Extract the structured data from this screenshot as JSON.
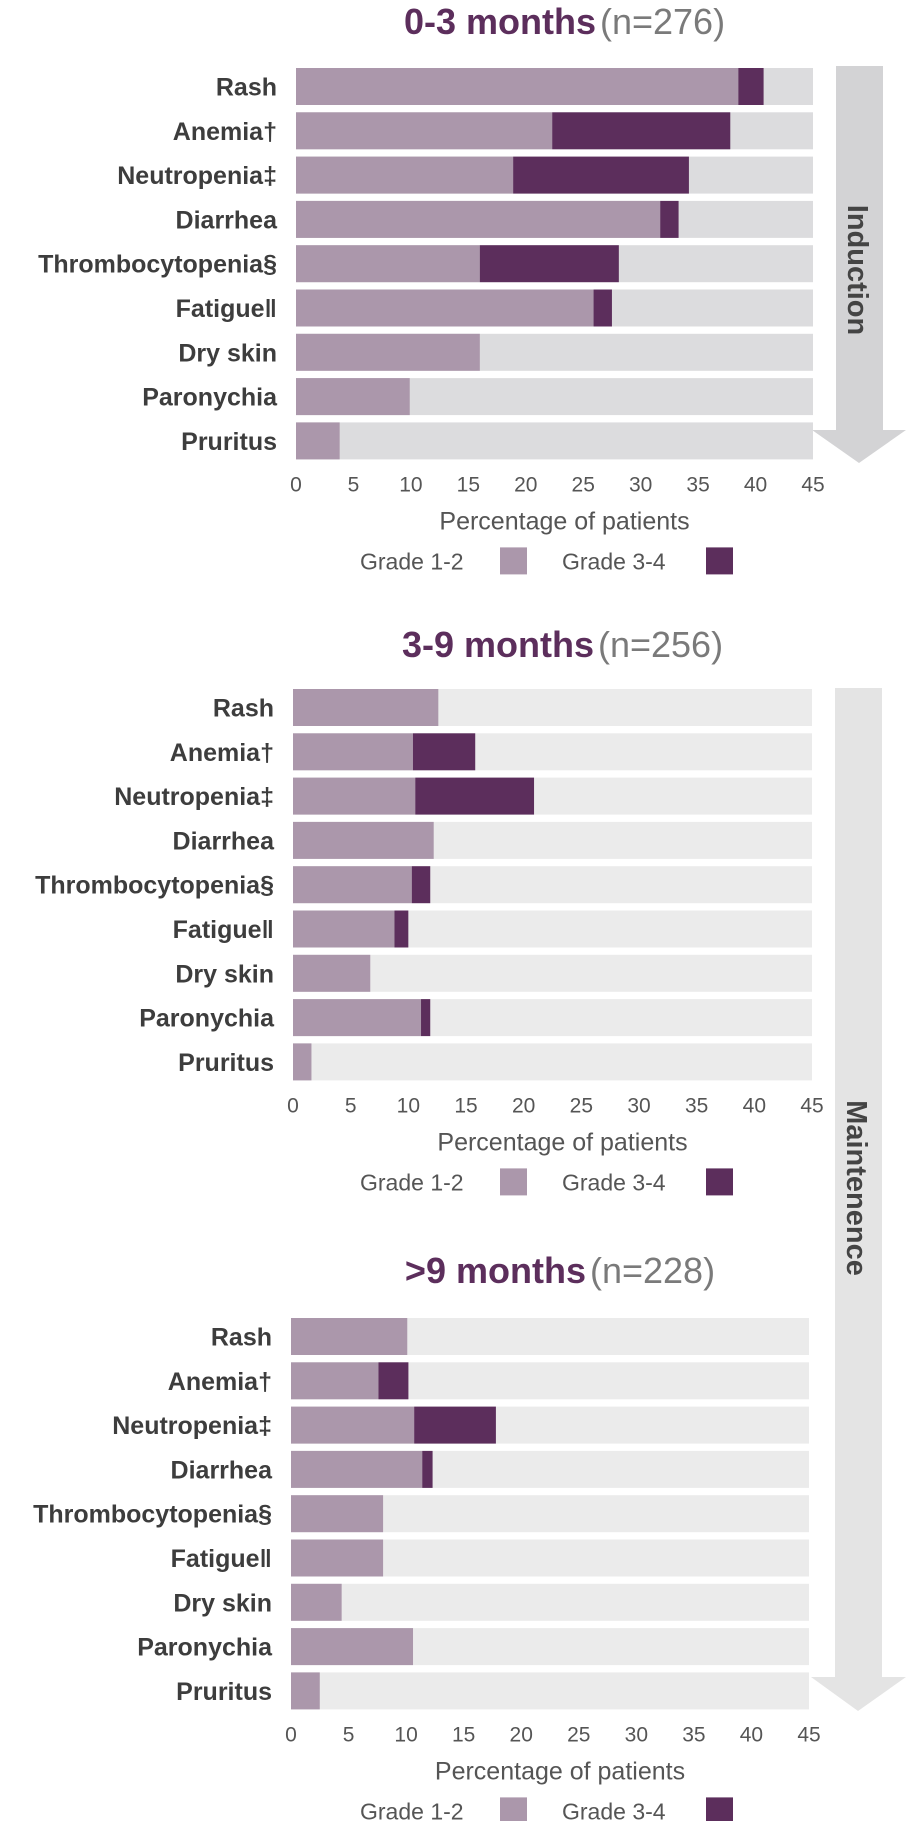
{
  "colors": {
    "grade_1_2": "#ab97ab",
    "grade_3_4": "#5c2e5c",
    "track": "#dcdcde",
    "track_light": "#ebebeb",
    "arrow_induction": "#d3d3d5",
    "arrow_maintenance": "#e4e4e4",
    "title_bold": "#5c2e5c",
    "title_n": "#7a7a7a"
  },
  "phases": {
    "induction": "Induction",
    "maintenance": "Maintenence"
  },
  "chart_data": [
    {
      "type": "bar",
      "orientation": "horizontal",
      "stacked": true,
      "title": "0-3 months",
      "subtitle": "(n=276)",
      "xlabel": "Percentage of patients",
      "xlim": [
        0,
        45
      ],
      "xticks": [
        0,
        5,
        10,
        15,
        20,
        25,
        30,
        35,
        40,
        45
      ],
      "legend": [
        "Grade 1-2",
        "Grade 3-4"
      ],
      "categories": [
        "Rash",
        "Anemia†",
        "Neutropenia‡",
        "Diarrhea",
        "Thrombocytopenia§",
        "Fatigue‖",
        "Dry skin",
        "Paronychia",
        "Pruritus"
      ],
      "series": [
        {
          "name": "Grade 1-2",
          "values": [
            38.5,
            22.3,
            18.9,
            31.7,
            16.0,
            25.9,
            16.0,
            9.9,
            3.8
          ]
        },
        {
          "name": "Grade 3-4",
          "values": [
            2.2,
            15.5,
            15.3,
            1.6,
            12.1,
            1.6,
            0,
            0,
            0
          ]
        }
      ]
    },
    {
      "type": "bar",
      "orientation": "horizontal",
      "stacked": true,
      "title": "3-9 months",
      "subtitle": "(n=256)",
      "xlabel": "Percentage of patients",
      "xlim": [
        0,
        45
      ],
      "xticks": [
        0,
        5,
        10,
        15,
        20,
        25,
        30,
        35,
        40,
        45
      ],
      "legend": [
        "Grade 1-2",
        "Grade 3-4"
      ],
      "categories": [
        "Rash",
        "Anemia†",
        "Neutropenia‡",
        "Diarrhea",
        "Thrombocytopenia§",
        "Fatigue‖",
        "Dry skin",
        "Paronychia",
        "Pruritus"
      ],
      "series": [
        {
          "name": "Grade 1-2",
          "values": [
            12.6,
            10.4,
            10.6,
            12.2,
            10.3,
            8.8,
            6.7,
            11.1,
            1.6
          ]
        },
        {
          "name": "Grade 3-4",
          "values": [
            0,
            5.4,
            10.3,
            0,
            1.6,
            1.2,
            0,
            0.8,
            0
          ]
        }
      ]
    },
    {
      "type": "bar",
      "orientation": "horizontal",
      "stacked": true,
      "title": ">9 months",
      "subtitle": "(n=228)",
      "xlabel": "Percentage of patients",
      "xlim": [
        0,
        45
      ],
      "xticks": [
        0,
        5,
        10,
        15,
        20,
        25,
        30,
        35,
        40,
        45
      ],
      "legend": [
        "Grade 1-2",
        "Grade 3-4"
      ],
      "categories": [
        "Rash",
        "Anemia†",
        "Neutropenia‡",
        "Diarrhea",
        "Thrombocytopenia§",
        "Fatigue‖",
        "Dry skin",
        "Paronychia",
        "Pruritus"
      ],
      "series": [
        {
          "name": "Grade 1-2",
          "values": [
            10.1,
            7.6,
            10.7,
            11.4,
            8.0,
            8.0,
            4.4,
            10.6,
            2.5
          ]
        },
        {
          "name": "Grade 3-4",
          "values": [
            0,
            2.6,
            7.1,
            0.9,
            0,
            0,
            0,
            0,
            0
          ]
        }
      ]
    }
  ]
}
